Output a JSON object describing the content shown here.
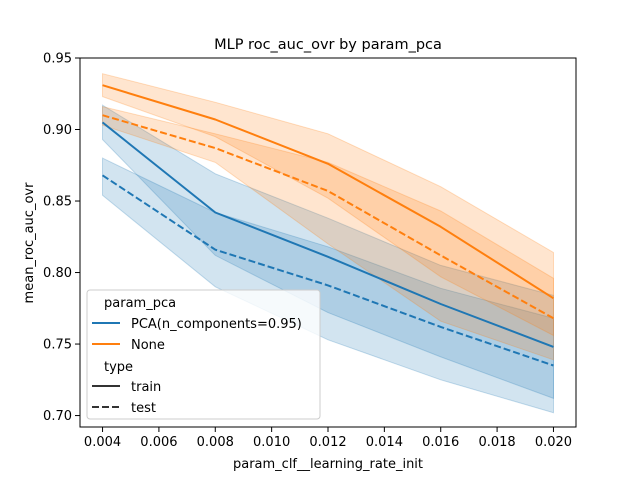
{
  "chart_data": {
    "type": "line",
    "title": "MLP roc_auc_ovr by param_pca",
    "xlabel": "param_clf__learning_rate_init",
    "ylabel": "mean_roc_auc_ovr",
    "xlim": [
      0.0032,
      0.0208
    ],
    "ylim": [
      0.692,
      0.95
    ],
    "x": [
      0.004,
      0.008,
      0.012,
      0.016,
      0.02
    ],
    "xticks": [
      0.004,
      0.006,
      0.008,
      0.01,
      0.012,
      0.014,
      0.016,
      0.018,
      0.02
    ],
    "xtick_labels": [
      "0.004",
      "0.006",
      "0.008",
      "0.010",
      "0.012",
      "0.014",
      "0.016",
      "0.018",
      "0.020"
    ],
    "yticks": [
      0.7,
      0.75,
      0.8,
      0.85,
      0.9,
      0.95
    ],
    "ytick_labels": [
      "0.70",
      "0.75",
      "0.80",
      "0.85",
      "0.90",
      "0.95"
    ],
    "grid": false,
    "legend_placement": "lower-left",
    "legend": {
      "hue_title": "param_pca",
      "hue_entries": [
        {
          "label": "PCA(n_components=0.95)",
          "color": "#1f77b4"
        },
        {
          "label": "None",
          "color": "#ff7f0e"
        }
      ],
      "style_title": "type",
      "style_entries": [
        {
          "label": "train",
          "dash": "solid"
        },
        {
          "label": "test",
          "dash": "dashed"
        }
      ]
    },
    "series": [
      {
        "param_pca": "PCA(n_components=0.95)",
        "type": "train",
        "color": "#1f77b4",
        "dash": "solid",
        "values": [
          0.905,
          0.842,
          0.811,
          0.778,
          0.748
        ],
        "ci_lower": [
          0.893,
          0.812,
          0.772,
          0.741,
          0.712
        ],
        "ci_upper": [
          0.917,
          0.869,
          0.838,
          0.805,
          0.784
        ]
      },
      {
        "param_pca": "PCA(n_components=0.95)",
        "type": "test",
        "color": "#1f77b4",
        "dash": "dashed",
        "values": [
          0.868,
          0.816,
          0.791,
          0.762,
          0.735
        ],
        "ci_lower": [
          0.854,
          0.79,
          0.753,
          0.725,
          0.702
        ],
        "ci_upper": [
          0.88,
          0.842,
          0.818,
          0.789,
          0.768
        ]
      },
      {
        "param_pca": "None",
        "type": "train",
        "color": "#ff7f0e",
        "dash": "solid",
        "values": [
          0.931,
          0.907,
          0.876,
          0.832,
          0.782
        ],
        "ci_lower": [
          0.923,
          0.895,
          0.852,
          0.797,
          0.756
        ],
        "ci_upper": [
          0.939,
          0.919,
          0.897,
          0.86,
          0.814
        ]
      },
      {
        "param_pca": "None",
        "type": "test",
        "color": "#ff7f0e",
        "dash": "dashed",
        "values": [
          0.91,
          0.887,
          0.857,
          0.812,
          0.768
        ],
        "ci_lower": [
          0.903,
          0.877,
          0.82,
          0.766,
          0.739
        ],
        "ci_upper": [
          0.916,
          0.897,
          0.877,
          0.843,
          0.796
        ]
      }
    ]
  }
}
